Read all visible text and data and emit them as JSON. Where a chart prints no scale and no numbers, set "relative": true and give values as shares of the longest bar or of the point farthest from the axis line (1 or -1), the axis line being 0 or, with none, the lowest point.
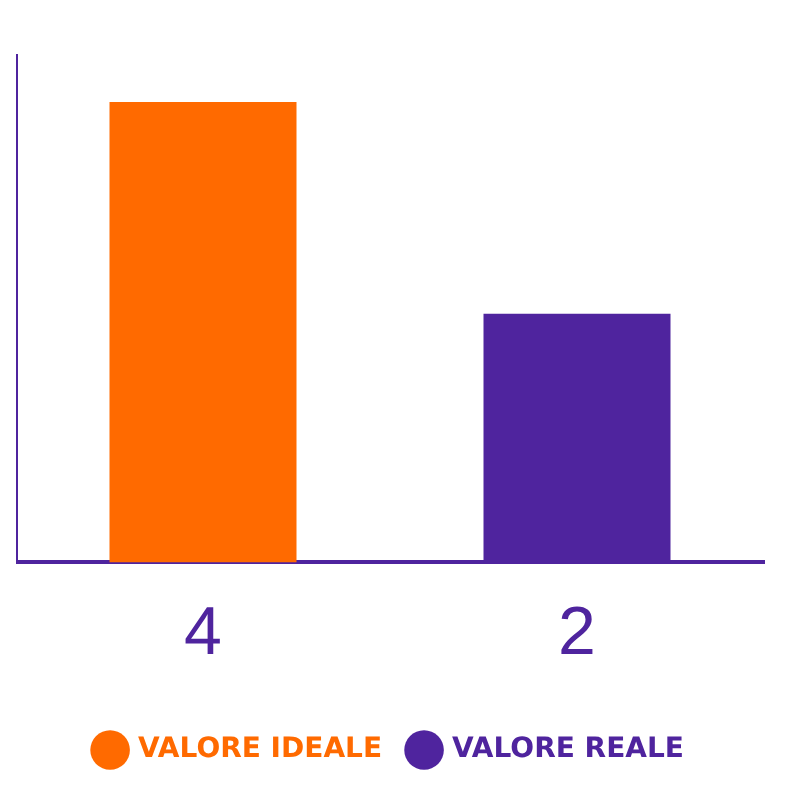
{
  "chart_data": {
    "type": "bar",
    "relative": true,
    "categories": [
      "4",
      "2"
    ],
    "series": [
      {
        "name": "VALORE IDEALE",
        "color": "#ff6a00",
        "values": [
          1,
          null
        ]
      },
      {
        "name": "VALORE REALE",
        "color": "#4f249e",
        "values": [
          null,
          0.54
        ]
      }
    ],
    "legend": "bottom",
    "grid": false
  }
}
